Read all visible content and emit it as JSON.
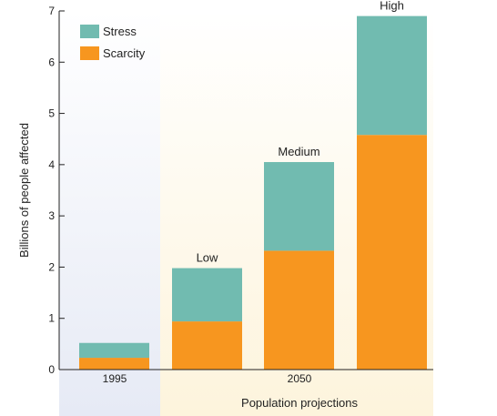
{
  "chart_data": {
    "type": "bar",
    "stacked": true,
    "ylabel": "Billions of people affected",
    "xlabel": "Population projections",
    "ylim": [
      0,
      7
    ],
    "yticks": [
      0,
      1,
      2,
      3,
      4,
      5,
      6,
      7
    ],
    "bars": [
      {
        "label": "",
        "scarcity": 0.23,
        "stress": 0.29
      },
      {
        "label": "Low",
        "scarcity": 0.94,
        "stress": 1.04
      },
      {
        "label": "Medium",
        "scarcity": 2.32,
        "stress": 1.73
      },
      {
        "label": "High",
        "scarcity": 4.58,
        "stress": 2.32
      }
    ],
    "groups": [
      "1995",
      "2050"
    ],
    "legend": {
      "position": "top-left",
      "items": [
        "Stress",
        "Scarcity"
      ]
    },
    "colors": {
      "stress": "#71BBB0",
      "scarcity": "#F7961F",
      "panel_1995": "#E6EAF5",
      "panel_2050": "#FDF7E3"
    }
  }
}
